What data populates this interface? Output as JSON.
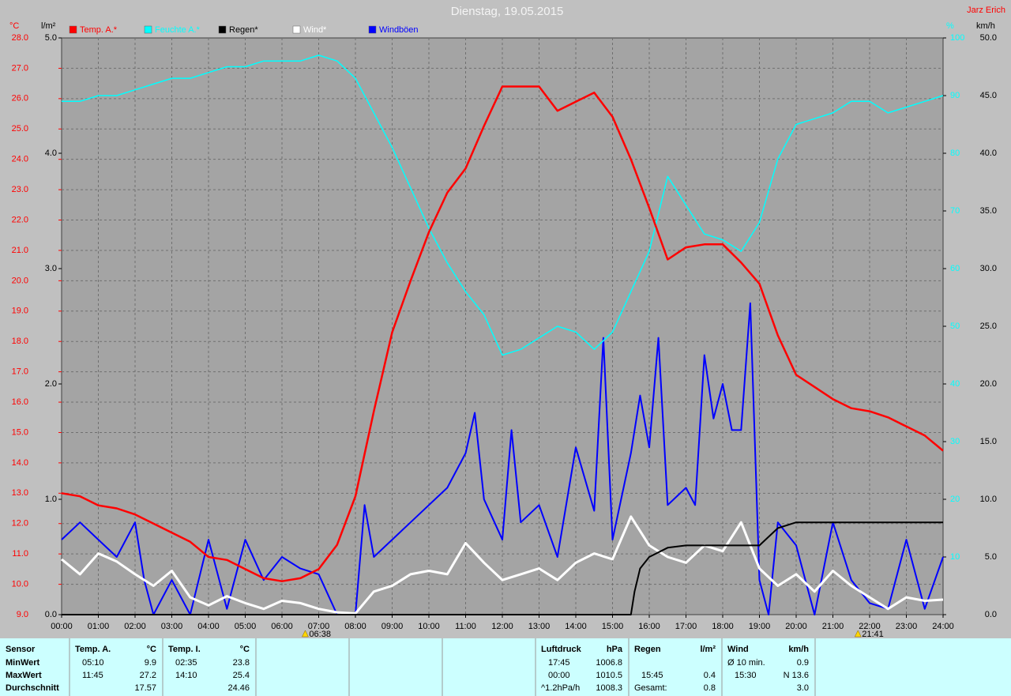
{
  "chart_data": {
    "type": "line",
    "title": "Dienstag, 19.05.2015",
    "author": "Jarz Erich",
    "grid": true,
    "x": [
      0,
      0.5,
      1,
      1.5,
      2,
      2.5,
      3,
      3.5,
      4,
      4.5,
      5,
      5.5,
      6,
      6.5,
      7,
      7.5,
      8,
      8.5,
      9,
      9.5,
      10,
      10.5,
      11,
      11.5,
      12,
      12.5,
      13,
      13.5,
      14,
      14.5,
      15,
      15.5,
      16,
      16.5,
      17,
      17.5,
      18,
      18.5,
      19,
      19.5,
      20,
      20.5,
      21,
      21.5,
      22,
      22.5,
      23,
      23.5,
      24
    ],
    "xlim": [
      0,
      24
    ],
    "xticks": [
      {
        "value": 0,
        "label": "00:00"
      },
      {
        "value": 1,
        "label": "01:00"
      },
      {
        "value": 2,
        "label": "02:00"
      },
      {
        "value": 3,
        "label": "03:00"
      },
      {
        "value": 4,
        "label": "04:00"
      },
      {
        "value": 5,
        "label": "05:00"
      },
      {
        "value": 6,
        "label": "06:00"
      },
      {
        "value": 7,
        "label": "07:00"
      },
      {
        "value": 8,
        "label": "08:00"
      },
      {
        "value": 9,
        "label": "09:00"
      },
      {
        "value": 10,
        "label": "10:00"
      },
      {
        "value": 11,
        "label": "11:00"
      },
      {
        "value": 12,
        "label": "12:00"
      },
      {
        "value": 13,
        "label": "13:00"
      },
      {
        "value": 14,
        "label": "14:00"
      },
      {
        "value": 15,
        "label": "15:00"
      },
      {
        "value": 16,
        "label": "16:00"
      },
      {
        "value": 17,
        "label": "17:00"
      },
      {
        "value": 18,
        "label": "18:00"
      },
      {
        "value": 19,
        "label": "19:00"
      },
      {
        "value": 20,
        "label": "20:00"
      },
      {
        "value": 21,
        "label": "21:00"
      },
      {
        "value": 22,
        "label": "22:00"
      },
      {
        "value": 23,
        "label": "23:00"
      },
      {
        "value": 24,
        "label": "24:00"
      }
    ],
    "y_label": "°C",
    "ylim": [
      9,
      28
    ],
    "yticks": [
      {
        "value": 9,
        "label": "9.0"
      },
      {
        "value": 10,
        "label": "10.0"
      },
      {
        "value": 11,
        "label": "11.0"
      },
      {
        "value": 12,
        "label": "12.0"
      },
      {
        "value": 13,
        "label": "13.0"
      },
      {
        "value": 14,
        "label": "14.0"
      },
      {
        "value": 15,
        "label": "15.0"
      },
      {
        "value": 16,
        "label": "16.0"
      },
      {
        "value": 17,
        "label": "17.0"
      },
      {
        "value": 18,
        "label": "18.0"
      },
      {
        "value": 19,
        "label": "19.0"
      },
      {
        "value": 20,
        "label": "20.0"
      },
      {
        "value": 21,
        "label": "21.0"
      },
      {
        "value": 22,
        "label": "22.0"
      },
      {
        "value": 23,
        "label": "23.0"
      },
      {
        "value": 24,
        "label": "24.0"
      },
      {
        "value": 25,
        "label": "25.0"
      },
      {
        "value": 26,
        "label": "26.0"
      },
      {
        "value": 27,
        "label": "27.0"
      },
      {
        "value": 28,
        "label": "28.0"
      }
    ],
    "y2_label": "l/m²",
    "y2lim": [
      0,
      5
    ],
    "y2ticks": [
      {
        "value": 0,
        "label": "0.0"
      },
      {
        "value": 1,
        "label": "1.0"
      },
      {
        "value": 2,
        "label": "2.0"
      },
      {
        "value": 3,
        "label": "3.0"
      },
      {
        "value": 4,
        "label": "4.0"
      },
      {
        "value": 5,
        "label": "5.0"
      }
    ],
    "y3_label": "%",
    "y3lim": [
      0,
      100
    ],
    "y3ticks": [
      10,
      20,
      30,
      40,
      50,
      60,
      70,
      80,
      90,
      100
    ],
    "y4_label": "km/h",
    "y4lim": [
      0,
      50
    ],
    "y4ticks": [
      {
        "value": 0,
        "label": "0.0"
      },
      {
        "value": 5,
        "label": "5.0"
      },
      {
        "value": 10,
        "label": "10.0"
      },
      {
        "value": 15,
        "label": "15.0"
      },
      {
        "value": 20,
        "label": "20.0"
      },
      {
        "value": 25,
        "label": "25.0"
      },
      {
        "value": 30,
        "label": "30.0"
      },
      {
        "value": 35,
        "label": "35.0"
      },
      {
        "value": 40,
        "label": "40.0"
      },
      {
        "value": 45,
        "label": "45.0"
      },
      {
        "value": 50,
        "label": "50.0"
      }
    ],
    "series": [
      {
        "name": "Temp. A.*",
        "color": "#ff0000",
        "axis": "y",
        "values": [
          13.0,
          12.9,
          12.6,
          12.5,
          12.3,
          12.0,
          11.7,
          11.4,
          10.9,
          10.8,
          10.5,
          10.2,
          10.1,
          10.2,
          10.5,
          11.3,
          12.9,
          15.7,
          18.3,
          20.0,
          21.6,
          22.9,
          23.7,
          25.1,
          26.4,
          26.4,
          26.4,
          25.6,
          25.9,
          26.2,
          25.4,
          24.0,
          22.4,
          20.7,
          21.1,
          21.2,
          21.2,
          20.6,
          19.9,
          18.2,
          16.9,
          16.5,
          16.1,
          15.8,
          15.7,
          15.5,
          15.2,
          14.9,
          14.4
        ]
      },
      {
        "name": "Feuchte A.*",
        "color": "#00ffff",
        "axis": "y3",
        "values": [
          89,
          89,
          90,
          90,
          91,
          92,
          93,
          93,
          94,
          95,
          95,
          96,
          96,
          96,
          97,
          96,
          93,
          87,
          81,
          74,
          67,
          61,
          56,
          52,
          45,
          46,
          48,
          50,
          49,
          46,
          49,
          56,
          63,
          76,
          71,
          66,
          65,
          63,
          68,
          79,
          85,
          86,
          87,
          89,
          89,
          87,
          88,
          89,
          90
        ]
      },
      {
        "name": "Regen*",
        "color": "#000000",
        "axis": "y2",
        "x": [
          0,
          15.5,
          15.6,
          15.75,
          16,
          16.5,
          17,
          18,
          19,
          19.5,
          20,
          24
        ],
        "values": [
          0,
          0,
          0.2,
          0.4,
          0.5,
          0.58,
          0.6,
          0.6,
          0.6,
          0.75,
          0.8,
          0.8
        ]
      },
      {
        "name": "Wind*",
        "color": "#ffffff",
        "axis": "y4",
        "values": [
          4.8,
          3.5,
          5.3,
          4.6,
          3.5,
          2.5,
          3.8,
          1.5,
          0.8,
          1.6,
          1.0,
          0.5,
          1.2,
          1.0,
          0.5,
          0.2,
          0.1,
          2.0,
          2.5,
          3.5,
          3.8,
          3.5,
          6.2,
          4.5,
          3.0,
          3.5,
          4.0,
          3.0,
          4.5,
          5.3,
          4.8,
          8.5,
          6.0,
          5.0,
          4.5,
          6.0,
          5.5,
          8.0,
          4.0,
          2.5,
          3.5,
          2.0,
          3.8,
          2.5,
          1.5,
          0.5,
          1.5,
          1.2,
          1.3
        ]
      },
      {
        "name": "Windböen",
        "color": "#0000ff",
        "axis": "y4",
        "x": [
          0,
          0.5,
          1,
          1.5,
          2,
          2.25,
          2.5,
          3,
          3.5,
          4,
          4.5,
          5,
          5.5,
          6,
          6.5,
          7,
          7.5,
          8,
          8.25,
          8.5,
          9,
          9.5,
          10,
          10.5,
          11,
          11.25,
          11.5,
          12,
          12.25,
          12.5,
          13,
          13.5,
          14,
          14.5,
          14.75,
          15,
          15.5,
          15.75,
          16,
          16.25,
          16.5,
          17,
          17.25,
          17.5,
          17.75,
          18,
          18.25,
          18.5,
          18.75,
          19,
          19.25,
          19.5,
          20,
          20.5,
          21,
          21.5,
          22,
          22.5,
          23,
          23.5,
          24
        ],
        "values": [
          6.5,
          8.0,
          6.5,
          5.0,
          8.0,
          3.0,
          0.0,
          3.0,
          0.0,
          6.5,
          0.5,
          6.5,
          3.0,
          5.0,
          4.0,
          3.5,
          0.0,
          0.0,
          9.5,
          5.0,
          6.5,
          8.0,
          9.5,
          11.0,
          14.0,
          17.5,
          10.0,
          6.5,
          16.0,
          8.0,
          9.5,
          5.0,
          14.5,
          9.0,
          24.0,
          6.5,
          14.0,
          19.0,
          14.5,
          24.0,
          9.5,
          11.0,
          9.5,
          22.5,
          17.0,
          20.0,
          16.0,
          16.0,
          27.0,
          3.0,
          0.0,
          8.0,
          6.0,
          0.0,
          8.0,
          3.0,
          1.0,
          0.5,
          6.5,
          0.5,
          5.0
        ]
      }
    ],
    "annotations": [
      {
        "label": "06:38",
        "x": 6.633
      },
      {
        "label": "21:41",
        "x": 21.683
      }
    ]
  },
  "summary": {
    "row_labels": [
      "Sensor",
      "MinWert",
      "MaxWert",
      "Durchschnitt"
    ],
    "blocks": [
      {
        "name": "Temp. A.",
        "unit": "°C",
        "rows": [
          [
            "05:10",
            "9.9"
          ],
          [
            "11:45",
            "27.2"
          ],
          [
            null,
            "17.57"
          ]
        ]
      },
      {
        "name": "Temp. I.",
        "unit": "°C",
        "rows": [
          [
            "02:35",
            "23.8"
          ],
          [
            "14:10",
            "25.4"
          ],
          [
            null,
            "24.46"
          ]
        ]
      },
      {
        "name": "Luftdruck",
        "unit": "hPa",
        "rows": [
          [
            "17:45",
            "1006.8"
          ],
          [
            "00:00",
            "1010.5"
          ],
          [
            "^1.2hPa/h",
            "1008.3"
          ]
        ]
      },
      {
        "name": "Regen",
        "unit": "l/m²",
        "rows": [
          [
            null,
            null
          ],
          [
            "15:45",
            "0.4"
          ],
          [
            "Gesamt:",
            "0.8"
          ]
        ]
      },
      {
        "name": "Wind",
        "unit": "km/h",
        "rows": [
          [
            "Ø 10 min.",
            "0.9"
          ],
          [
            "15:30",
            "N 13.6"
          ],
          [
            null,
            "3.0"
          ]
        ]
      }
    ]
  }
}
